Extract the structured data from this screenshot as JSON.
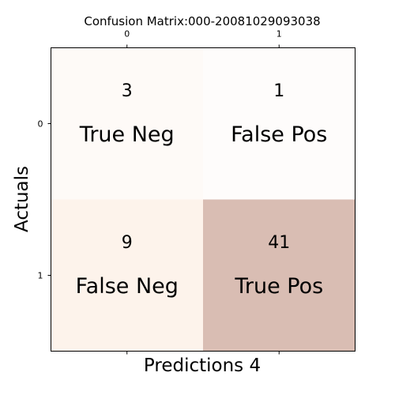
{
  "chart_data": {
    "type": "heatmap",
    "title": "Confusion Matrix:000-20081029093038",
    "xlabel": "Predictions 4",
    "ylabel": "Actuals",
    "x_ticks": [
      "0",
      "1"
    ],
    "y_ticks": [
      "0",
      "1"
    ],
    "x_tick_position": "top",
    "values": [
      [
        3,
        1
      ],
      [
        9,
        41
      ]
    ],
    "cell_labels": [
      [
        "True Neg",
        "False Pos"
      ],
      [
        "False Neg",
        "True Pos"
      ]
    ],
    "cell_colors": [
      [
        "#fefaf7",
        "#fefcfb"
      ],
      [
        "#fdf3eb",
        "#d9bdb3"
      ]
    ],
    "grid": false
  }
}
